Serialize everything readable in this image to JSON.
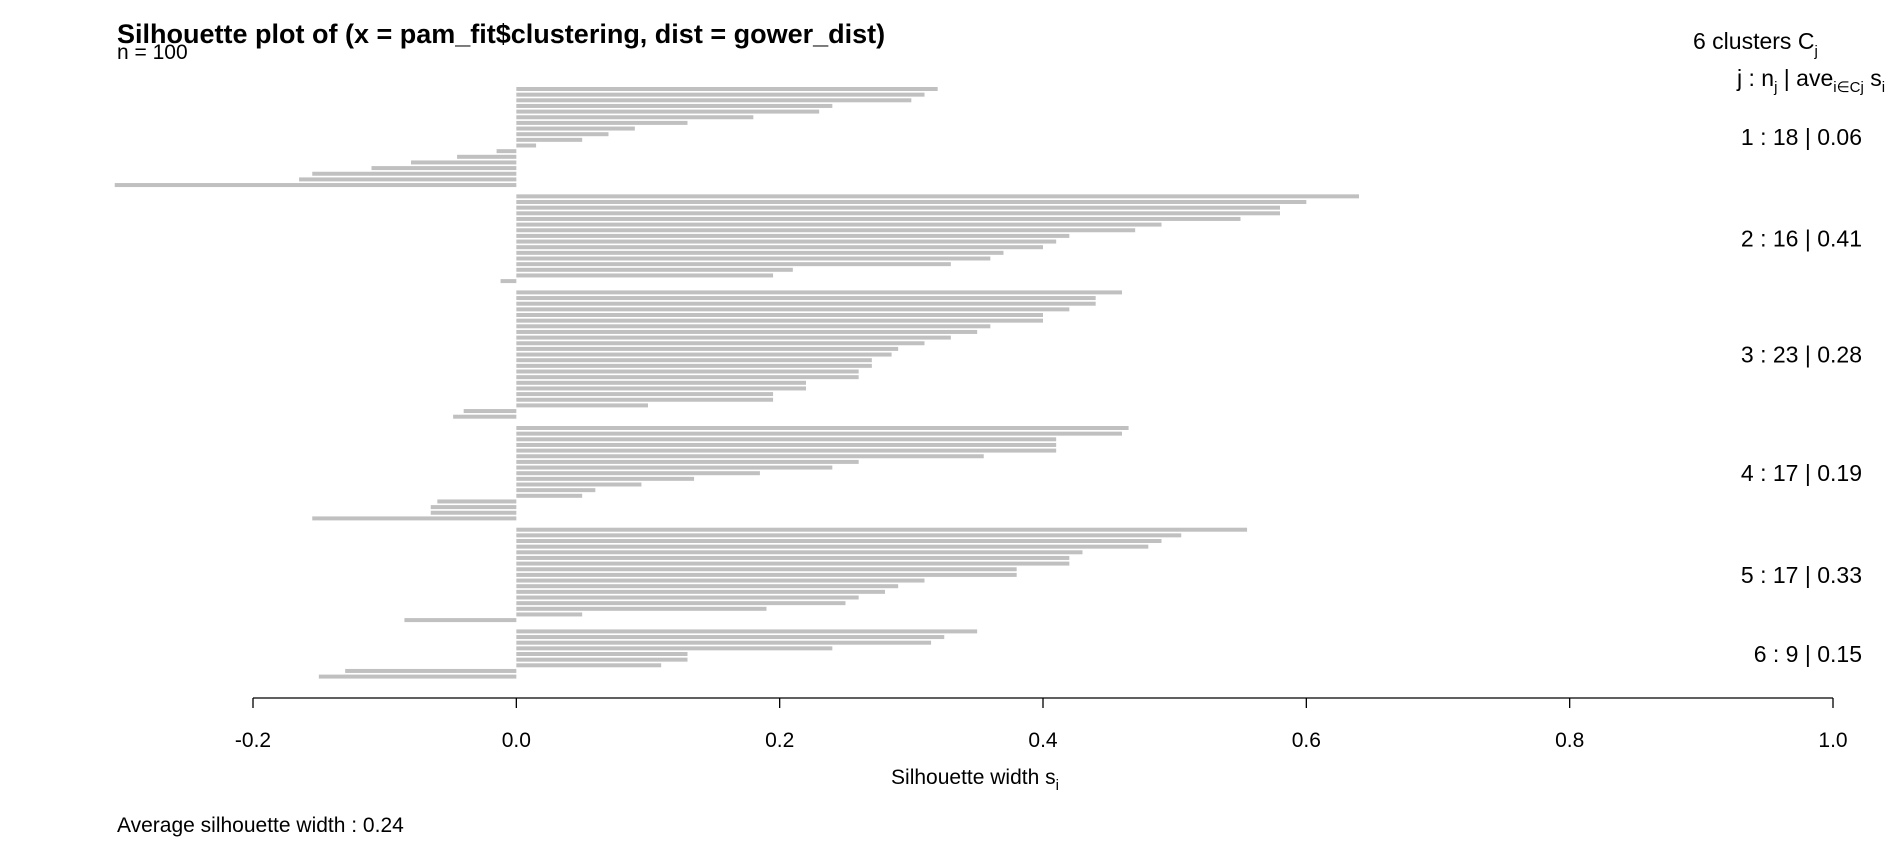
{
  "chart_data": {
    "type": "bar",
    "orientation": "horizontal",
    "title": "Silhouette plot of (x = pam_fit$clustering, dist = gower_dist)",
    "n_label": "n = 100",
    "xlabel": "Silhouette width s",
    "xlabel_sub": "i",
    "xlim": [
      -0.2,
      1.0
    ],
    "xticks": [
      "-0.2",
      "0.0",
      "0.2",
      "0.4",
      "0.6",
      "0.8",
      "1.0"
    ],
    "xtick_values": [
      -0.2,
      0.0,
      0.2,
      0.4,
      0.6,
      0.8,
      1.0
    ],
    "bar_color": "#c0c0c0",
    "legend": {
      "header": "6  clusters  C",
      "header_sub": "j",
      "subheader_j": "j :  n",
      "subheader_j_sub": "j",
      "subheader_ave": " | ave",
      "subheader_ave_sub": "i∈Cj",
      "subheader_s": "  s",
      "subheader_s_sub": "i"
    },
    "clusters": [
      {
        "label": "1 :   18  |  0.06",
        "id": 1,
        "size": 18,
        "avg": 0.06,
        "values": [
          0.32,
          0.31,
          0.3,
          0.24,
          0.23,
          0.18,
          0.13,
          0.09,
          0.07,
          0.05,
          0.015,
          -0.015,
          -0.045,
          -0.08,
          -0.11,
          -0.155,
          -0.165,
          -0.305
        ]
      },
      {
        "label": "2 :   16  |  0.41",
        "id": 2,
        "size": 16,
        "avg": 0.41,
        "values": [
          0.64,
          0.6,
          0.58,
          0.58,
          0.55,
          0.49,
          0.47,
          0.42,
          0.41,
          0.4,
          0.37,
          0.36,
          0.33,
          0.21,
          0.195,
          -0.012
        ]
      },
      {
        "label": "3 :   23  |  0.28",
        "id": 3,
        "size": 23,
        "avg": 0.28,
        "values": [
          0.46,
          0.44,
          0.44,
          0.42,
          0.4,
          0.4,
          0.36,
          0.35,
          0.33,
          0.31,
          0.29,
          0.285,
          0.27,
          0.27,
          0.26,
          0.26,
          0.22,
          0.22,
          0.195,
          0.195,
          0.1,
          -0.04,
          -0.048
        ]
      },
      {
        "label": "4 :   17  |  0.19",
        "id": 4,
        "size": 17,
        "avg": 0.19,
        "values": [
          0.465,
          0.46,
          0.41,
          0.41,
          0.41,
          0.355,
          0.26,
          0.24,
          0.185,
          0.135,
          0.095,
          0.06,
          0.05,
          -0.06,
          -0.065,
          -0.065,
          -0.155
        ]
      },
      {
        "label": "5 :   17  |  0.33",
        "id": 5,
        "size": 17,
        "avg": 0.33,
        "values": [
          0.555,
          0.505,
          0.49,
          0.48,
          0.43,
          0.42,
          0.42,
          0.38,
          0.38,
          0.31,
          0.29,
          0.28,
          0.26,
          0.25,
          0.19,
          0.05,
          -0.085
        ]
      },
      {
        "label": "6 :   9  |  0.15",
        "id": 6,
        "size": 9,
        "avg": 0.15,
        "values": [
          0.35,
          0.325,
          0.315,
          0.24,
          0.13,
          0.13,
          0.11,
          -0.13,
          -0.15
        ]
      }
    ],
    "avg_text": "Average silhouette width :  0.24"
  }
}
